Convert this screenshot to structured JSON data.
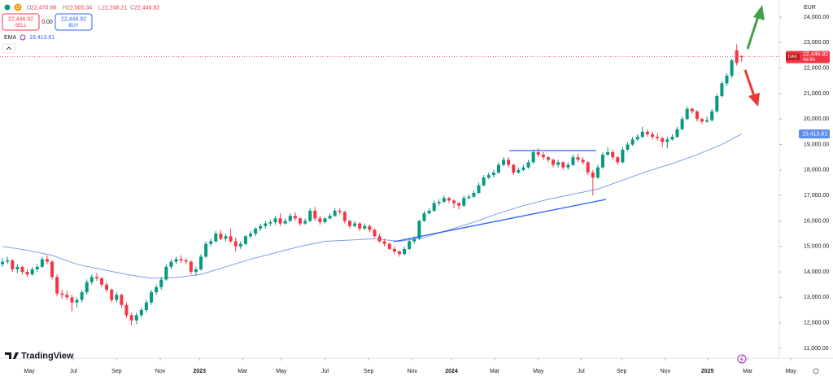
{
  "header": {
    "flag": "D",
    "ohlc": [
      {
        "label": "O",
        "value": "22,470.68"
      },
      {
        "label": "H",
        "value": "22,505.34"
      },
      {
        "label": "L",
        "value": "22,248.21"
      },
      {
        "label": "C",
        "value": "22,446.92"
      }
    ],
    "sell_price": "22,446.92",
    "sell": "SELL",
    "spread": "0.00",
    "buy_price": "22,446.92",
    "buy": "BUY"
  },
  "indicator": {
    "name": "EMA",
    "value": "19,413.61"
  },
  "price_tag": {
    "symbol": "DAX",
    "price": "22,446.92",
    "countdown": "4d 6h"
  },
  "ema_tag": "19,413.61",
  "logo": "TradingView",
  "chart_data": {
    "type": "candlestick",
    "currency": "EUR",
    "up_color": "#089981",
    "down_color": "#f23645",
    "candles": [
      [
        14300,
        14550,
        14200,
        14400
      ],
      [
        14400,
        14600,
        14300,
        14450
      ],
      [
        14450,
        14500,
        14000,
        14100
      ],
      [
        14100,
        14300,
        13950,
        14200
      ],
      [
        14200,
        14250,
        13900,
        14000
      ],
      [
        14000,
        14100,
        13800,
        13900
      ],
      [
        13900,
        14200,
        13850,
        14100
      ],
      [
        14100,
        14300,
        14000,
        14200
      ],
      [
        14200,
        14600,
        14150,
        14500
      ],
      [
        14500,
        14650,
        14300,
        14400
      ],
      [
        14400,
        14450,
        13700,
        13800
      ],
      [
        13800,
        13900,
        13050,
        13150
      ],
      [
        13150,
        13300,
        12950,
        13100
      ],
      [
        13100,
        13250,
        12900,
        13000
      ],
      [
        13000,
        13100,
        12450,
        12800
      ],
      [
        12800,
        13000,
        12600,
        12900
      ],
      [
        12900,
        13300,
        12800,
        13200
      ],
      [
        13200,
        13700,
        13100,
        13600
      ],
      [
        13600,
        13900,
        13500,
        13800
      ],
      [
        13800,
        13950,
        13650,
        13750
      ],
      [
        13750,
        13800,
        13400,
        13500
      ],
      [
        13500,
        13600,
        13200,
        13300
      ],
      [
        13300,
        13350,
        12800,
        12900
      ],
      [
        12900,
        13200,
        12800,
        13100
      ],
      [
        13100,
        13150,
        12600,
        12700
      ],
      [
        12700,
        12800,
        12200,
        12300
      ],
      [
        12300,
        12400,
        11900,
        12100
      ],
      [
        12100,
        12400,
        11950,
        12300
      ],
      [
        12300,
        12600,
        12200,
        12500
      ],
      [
        12500,
        12900,
        12400,
        12800
      ],
      [
        12800,
        13300,
        12700,
        13200
      ],
      [
        13200,
        13500,
        13100,
        13400
      ],
      [
        13400,
        13800,
        13300,
        13700
      ],
      [
        13700,
        14300,
        13650,
        14200
      ],
      [
        14200,
        14500,
        14100,
        14400
      ],
      [
        14400,
        14600,
        14300,
        14500
      ],
      [
        14500,
        14650,
        14350,
        14450
      ],
      [
        14450,
        14550,
        14300,
        14400
      ],
      [
        14400,
        14450,
        13900,
        14000
      ],
      [
        14000,
        14200,
        13850,
        14100
      ],
      [
        14100,
        14700,
        14050,
        14600
      ],
      [
        14600,
        15200,
        14550,
        15100
      ],
      [
        15100,
        15300,
        15000,
        15200
      ],
      [
        15200,
        15600,
        15150,
        15500
      ],
      [
        15500,
        15650,
        15250,
        15300
      ],
      [
        15300,
        15500,
        15200,
        15400
      ],
      [
        15400,
        15700,
        15150,
        15200
      ],
      [
        15200,
        15350,
        14800,
        15000
      ],
      [
        15000,
        15200,
        14900,
        15100
      ],
      [
        15100,
        15450,
        15050,
        15400
      ],
      [
        15400,
        15600,
        15300,
        15500
      ],
      [
        15500,
        15750,
        15400,
        15700
      ],
      [
        15700,
        15900,
        15600,
        15800
      ],
      [
        15800,
        16000,
        15700,
        15900
      ],
      [
        15900,
        16050,
        15800,
        15950
      ],
      [
        15950,
        16200,
        15850,
        16100
      ],
      [
        16100,
        16300,
        15800,
        15900
      ],
      [
        15900,
        16100,
        15850,
        16000
      ],
      [
        16000,
        16300,
        15950,
        16200
      ],
      [
        16200,
        16350,
        16000,
        16100
      ],
      [
        16100,
        16150,
        15800,
        15900
      ],
      [
        15900,
        16100,
        15850,
        16000
      ],
      [
        16000,
        16500,
        15950,
        16400
      ],
      [
        16400,
        16550,
        16000,
        16100
      ],
      [
        16100,
        16200,
        15850,
        15950
      ],
      [
        15950,
        16150,
        15900,
        16100
      ],
      [
        16100,
        16300,
        16050,
        16200
      ],
      [
        16200,
        16500,
        16150,
        16400
      ],
      [
        16400,
        16500,
        16250,
        16350
      ],
      [
        16350,
        16400,
        15900,
        16000
      ],
      [
        16000,
        16050,
        15700,
        15800
      ],
      [
        15800,
        16000,
        15750,
        15900
      ],
      [
        15900,
        15950,
        15600,
        15700
      ],
      [
        15700,
        15900,
        15650,
        15800
      ],
      [
        15800,
        15850,
        15550,
        15650
      ],
      [
        15650,
        15700,
        15350,
        15400
      ],
      [
        15400,
        15500,
        15150,
        15200
      ],
      [
        15200,
        15300,
        15000,
        15100
      ],
      [
        15100,
        15150,
        14850,
        14900
      ],
      [
        14900,
        15000,
        14700,
        14800
      ],
      [
        14800,
        14850,
        14600,
        14700
      ],
      [
        14700,
        15000,
        14650,
        14900
      ],
      [
        14900,
        15300,
        14850,
        15200
      ],
      [
        15200,
        15400,
        15100,
        15300
      ],
      [
        15300,
        16050,
        15250,
        16000
      ],
      [
        16000,
        16400,
        15950,
        16300
      ],
      [
        16300,
        16500,
        16250,
        16400
      ],
      [
        16400,
        16800,
        16350,
        16700
      ],
      [
        16700,
        16850,
        16600,
        16750
      ],
      [
        16750,
        17000,
        16700,
        16900
      ],
      [
        16900,
        16950,
        16700,
        16800
      ],
      [
        16800,
        16850,
        16500,
        16700
      ],
      [
        16700,
        16750,
        16450,
        16600
      ],
      [
        16600,
        17000,
        16550,
        16900
      ],
      [
        16900,
        17050,
        16850,
        16950
      ],
      [
        16950,
        17200,
        16900,
        17100
      ],
      [
        17100,
        17500,
        17050,
        17400
      ],
      [
        17400,
        17800,
        17350,
        17700
      ],
      [
        17700,
        17900,
        17650,
        17800
      ],
      [
        17800,
        18000,
        17700,
        17900
      ],
      [
        17900,
        18300,
        17850,
        18200
      ],
      [
        18200,
        18500,
        18150,
        18400
      ],
      [
        18400,
        18500,
        18100,
        18200
      ],
      [
        18200,
        18250,
        17800,
        17900
      ],
      [
        17900,
        18100,
        17850,
        18000
      ],
      [
        18000,
        18200,
        17950,
        18100
      ],
      [
        18100,
        18400,
        18050,
        18300
      ],
      [
        18300,
        18800,
        18250,
        18700
      ],
      [
        18700,
        18850,
        18500,
        18600
      ],
      [
        18600,
        18700,
        18400,
        18500
      ],
      [
        18500,
        18550,
        18300,
        18400
      ],
      [
        18400,
        18450,
        18100,
        18200
      ],
      [
        18200,
        18400,
        18100,
        18300
      ],
      [
        18300,
        18350,
        18000,
        18100
      ],
      [
        18100,
        18300,
        18000,
        18200
      ],
      [
        18200,
        18600,
        18150,
        18500
      ],
      [
        18500,
        18650,
        18300,
        18400
      ],
      [
        18400,
        18500,
        18200,
        18300
      ],
      [
        18300,
        18350,
        17800,
        17900
      ],
      [
        17900,
        18000,
        17000,
        17700
      ],
      [
        17700,
        18200,
        17650,
        18100
      ],
      [
        18100,
        18700,
        18050,
        18600
      ],
      [
        18600,
        18900,
        18550,
        18700
      ],
      [
        18700,
        18800,
        18400,
        18500
      ],
      [
        18500,
        18550,
        18200,
        18300
      ],
      [
        18300,
        18900,
        18250,
        18800
      ],
      [
        18800,
        19100,
        18750,
        19000
      ],
      [
        19000,
        19300,
        18950,
        19200
      ],
      [
        19200,
        19400,
        19150,
        19300
      ],
      [
        19300,
        19700,
        19250,
        19500
      ],
      [
        19500,
        19600,
        19300,
        19400
      ],
      [
        19400,
        19500,
        19200,
        19300
      ],
      [
        19300,
        19450,
        19150,
        19250
      ],
      [
        19250,
        19300,
        18900,
        19100
      ],
      [
        19100,
        19300,
        18850,
        19200
      ],
      [
        19200,
        19400,
        19150,
        19300
      ],
      [
        19300,
        19700,
        19250,
        19600
      ],
      [
        19600,
        20100,
        19550,
        20000
      ],
      [
        20000,
        20500,
        19950,
        20400
      ],
      [
        20400,
        20450,
        20200,
        20300
      ],
      [
        20300,
        20350,
        19900,
        20000
      ],
      [
        20000,
        20050,
        19800,
        19900
      ],
      [
        19900,
        20100,
        19850,
        19950
      ],
      [
        19950,
        20400,
        19900,
        20300
      ],
      [
        20300,
        21000,
        20250,
        20900
      ],
      [
        20900,
        21500,
        20850,
        21400
      ],
      [
        21400,
        21800,
        21300,
        21700
      ],
      [
        21700,
        22350,
        21600,
        22300
      ],
      [
        22700,
        22935,
        22100,
        22200
      ],
      [
        22470.68,
        22505.34,
        22248.21,
        22446.92
      ]
    ],
    "ema": {
      "color": "#7e9ee6",
      "x": [
        0,
        5,
        10,
        15,
        20,
        25,
        30,
        35,
        40,
        45,
        50,
        55,
        60,
        65,
        70,
        75,
        80,
        85,
        90,
        95,
        100,
        105,
        110,
        115,
        120,
        125,
        130,
        135,
        140,
        145,
        149
      ],
      "values": [
        15000,
        14850,
        14650,
        14300,
        14100,
        13900,
        13750,
        13780,
        13900,
        14200,
        14500,
        14750,
        15000,
        15200,
        15250,
        15300,
        15200,
        15350,
        15650,
        15950,
        16300,
        16600,
        16850,
        17050,
        17250,
        17600,
        17950,
        18250,
        18600,
        19000,
        19413.61
      ]
    },
    "xlim": [
      -0.5,
      167.4
    ],
    "ylim": [
      10617,
      24671
    ],
    "xticks": [
      {
        "value": 5.4,
        "label": "May"
      },
      {
        "value": 14.3,
        "label": "Jul"
      },
      {
        "value": 23,
        "label": "Sep"
      },
      {
        "value": 31.8,
        "label": "Nov"
      },
      {
        "value": 39.7,
        "label": "2023"
      },
      {
        "value": 48.4,
        "label": "Mar"
      },
      {
        "value": 56.2,
        "label": "May"
      },
      {
        "value": 65,
        "label": "Jul"
      },
      {
        "value": 73.8,
        "label": "Sep"
      },
      {
        "value": 82.6,
        "label": "Nov"
      },
      {
        "value": 90.5,
        "label": "2024"
      },
      {
        "value": 99.2,
        "label": "Mar"
      },
      {
        "value": 108,
        "label": "May"
      },
      {
        "value": 116.6,
        "label": "Jul"
      },
      {
        "value": 124.8,
        "label": "Sep"
      },
      {
        "value": 133.6,
        "label": "Nov"
      },
      {
        "value": 142.1,
        "label": "2025"
      },
      {
        "value": 150.2,
        "label": "Mar"
      },
      {
        "value": 158.9,
        "label": "May"
      }
    ],
    "yticks": [
      {
        "value": 11000,
        "label": "11,000.00"
      },
      {
        "value": 12000,
        "label": "12,000.00"
      },
      {
        "value": 13000,
        "label": "13,000.00"
      },
      {
        "value": 14000,
        "label": "14,000.00"
      },
      {
        "value": 15000,
        "label": "15,000.00"
      },
      {
        "value": 16000,
        "label": "16,000.00"
      },
      {
        "value": 17000,
        "label": "17,000.00"
      },
      {
        "value": 18000,
        "label": "18,000.00"
      },
      {
        "value": 19000,
        "label": "19,000.00"
      },
      {
        "value": 20000,
        "label": "20,000.00"
      },
      {
        "value": 21000,
        "label": "21,000.00"
      },
      {
        "value": 22000,
        "label": "22,000.00"
      },
      {
        "value": 23000,
        "label": "23,000.00"
      },
      {
        "value": 24000,
        "label": "24,000.00"
      }
    ],
    "grid": false
  }
}
